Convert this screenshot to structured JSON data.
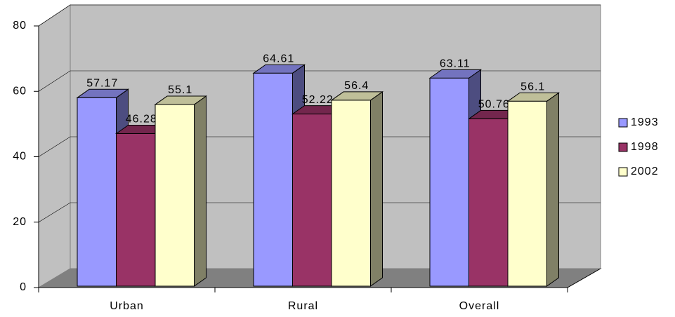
{
  "chart_data": {
    "type": "bar3d",
    "categories": [
      "Urban",
      "Rural",
      "Overall"
    ],
    "series": [
      {
        "name": "1993",
        "color": "#9999ff",
        "values": [
          57.17,
          64.61,
          63.11
        ]
      },
      {
        "name": "1998",
        "color": "#993366",
        "values": [
          46.28,
          52.22,
          50.76
        ]
      },
      {
        "name": "2002",
        "color": "#ffffcc",
        "values": [
          55.1,
          56.4,
          56.1
        ]
      }
    ],
    "ylim": [
      0,
      80
    ],
    "yticks": [
      0,
      20,
      40,
      60,
      80
    ],
    "grid": true,
    "legend": "right"
  }
}
